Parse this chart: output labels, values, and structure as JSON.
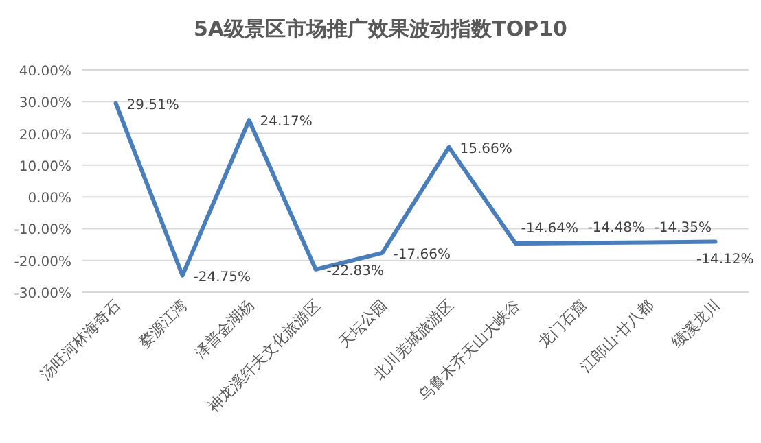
{
  "chart_data": {
    "type": "line",
    "title": "5A级景区市场推广效果波动指数TOP10",
    "categories": [
      "汤旺河林海奇石",
      "婺源江湾",
      "泽普金湖杨",
      "神龙溪纤夫文化旅游区",
      "天坛公园",
      "北川羌城旅游区",
      "乌鲁木齐天山大峡谷",
      "龙门石窟",
      "江郎山·廿八都",
      "绩溪龙川"
    ],
    "series": [
      {
        "color": "#4a7ebb",
        "values": [
          29.51,
          -24.75,
          24.17,
          -22.83,
          -17.66,
          15.66,
          -14.64,
          -14.48,
          -14.35,
          -14.12
        ],
        "value_labels": [
          "29.51%",
          "-24.75%",
          "24.17%",
          "-22.83%",
          "-17.66%",
          "15.66%",
          "-14.64%",
          "-14.48%",
          "-14.35%",
          "-14.12%"
        ]
      }
    ],
    "ylim": [
      -30,
      40
    ],
    "yticks": [
      {
        "value": -30,
        "label": "-30.00%"
      },
      {
        "value": -20,
        "label": "-20.00%"
      },
      {
        "value": -10,
        "label": "-10.00%"
      },
      {
        "value": 0,
        "label": "0.00%"
      },
      {
        "value": 10,
        "label": "10.00%"
      },
      {
        "value": 20,
        "label": "20.00%"
      },
      {
        "value": 30,
        "label": "30.00%"
      },
      {
        "value": 40,
        "label": "40.00%"
      }
    ],
    "grid": "y",
    "marker": "none",
    "line_style": "solid"
  }
}
